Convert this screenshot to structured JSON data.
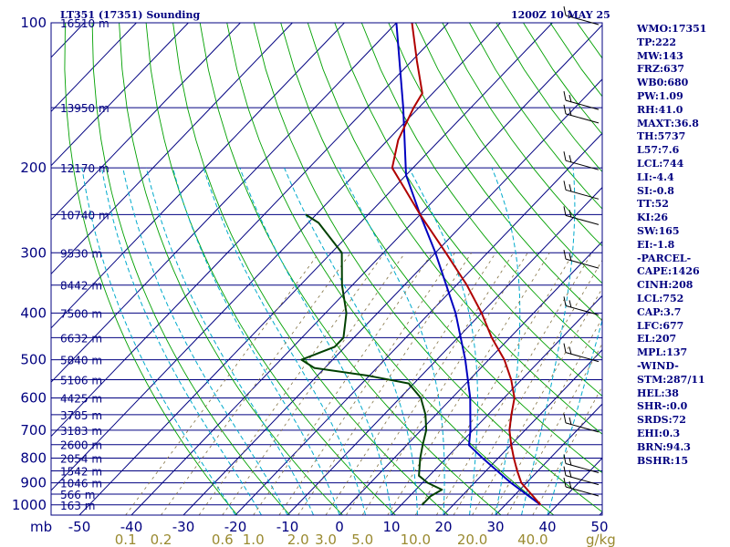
{
  "title_left": "LT351 (17351) Sounding",
  "title_right": "1200Z 10 MAY 25",
  "pressure_axis_label": "mb",
  "kg_label": "g/kg",
  "colors": {
    "isobar": "#000080",
    "isotherm": "#000080",
    "dry_adiabat": "#00a000",
    "moist_adiabat": "#00aacc",
    "mixing_ratio": "#807040",
    "temperature": "#b00000",
    "dewpoint": "#004000",
    "parcel": "#0000c0"
  },
  "stats": [
    "WMO:17351",
    "TP:222",
    "MW:143",
    "FRZ:637",
    "WB0:680",
    "PW:1.09",
    "RH:41.0",
    "MAXT:36.8",
    "TH:5737",
    "L57:7.6",
    "LCL:744",
    "LI:-4.4",
    "SI:-0.8",
    "TT:52",
    "KI:26",
    "SW:165",
    "EI:-1.8",
    "-PARCEL-",
    "CAPE:1426",
    "CINH:208",
    "LCL:752",
    "CAP:3.7",
    "LFC:677",
    "EL:207",
    "MPL:137",
    "-WIND-",
    "STM:287/11",
    "HEL:38",
    "SHR-:0.0",
    "SRDS:72",
    "EHI:0.3",
    "BRN:94.3",
    "BSHR:15"
  ],
  "chart_data": {
    "type": "line",
    "chart_kind": "Skew-T log-P sounding",
    "pressure_ticks_mb": [
      "100",
      "200",
      "300",
      "400",
      "500",
      "600",
      "700",
      "800",
      "900",
      "1000"
    ],
    "heights": [
      {
        "p": 100,
        "label": "16510 m"
      },
      {
        "p": 150,
        "label": "13950 m"
      },
      {
        "p": 200,
        "label": "12170 m"
      },
      {
        "p": 250,
        "label": "10740 m"
      },
      {
        "p": 300,
        "label": "9530 m"
      },
      {
        "p": 350,
        "label": "8442 m"
      },
      {
        "p": 400,
        "label": "7500 m"
      },
      {
        "p": 450,
        "label": "6632 m"
      },
      {
        "p": 500,
        "label": "5840 m"
      },
      {
        "p": 550,
        "label": "5106 m"
      },
      {
        "p": 600,
        "label": "4425 m"
      },
      {
        "p": 650,
        "label": "3785 m"
      },
      {
        "p": 700,
        "label": "3183 m"
      },
      {
        "p": 750,
        "label": "2600 m"
      },
      {
        "p": 800,
        "label": "2054 m"
      },
      {
        "p": 850,
        "label": "1542 m"
      },
      {
        "p": 900,
        "label": "1046 m"
      },
      {
        "p": 950,
        "label": "566 m"
      },
      {
        "p": 1000,
        "label": "163 m"
      }
    ],
    "temp_ticks_c": [
      "-50",
      "-40",
      "-30",
      "-20",
      "-10",
      "0",
      "10",
      "20",
      "30",
      "40",
      "50"
    ],
    "mixing_ratio_ticks_gkg": [
      "0.1",
      "0.2",
      "0.6",
      "1.0",
      "2.0",
      "3.0",
      "5.0",
      "10.0",
      "20.0",
      "40.0"
    ],
    "temperature_profile": [
      {
        "p": 1000,
        "t": 36.8
      },
      {
        "p": 950,
        "t": 33.0
      },
      {
        "p": 900,
        "t": 29.0
      },
      {
        "p": 850,
        "t": 26.0
      },
      {
        "p": 800,
        "t": 23.0
      },
      {
        "p": 750,
        "t": 20.0
      },
      {
        "p": 700,
        "t": 17.0
      },
      {
        "p": 650,
        "t": 14.5
      },
      {
        "p": 600,
        "t": 12.0
      },
      {
        "p": 550,
        "t": 8.0
      },
      {
        "p": 500,
        "t": 3.0
      },
      {
        "p": 450,
        "t": -3.5
      },
      {
        "p": 400,
        "t": -10.0
      },
      {
        "p": 350,
        "t": -18.0
      },
      {
        "p": 300,
        "t": -28.0
      },
      {
        "p": 250,
        "t": -40.0
      },
      {
        "p": 220,
        "t": -48.0
      },
      {
        "p": 200,
        "t": -54.0
      },
      {
        "p": 175,
        "t": -58.0
      },
      {
        "p": 150,
        "t": -61.0
      },
      {
        "p": 140,
        "t": -62.0
      },
      {
        "p": 120,
        "t": -69.0
      },
      {
        "p": 100,
        "t": -77.0
      }
    ],
    "dewpoint_profile": [
      {
        "p": 1000,
        "td": 14.0
      },
      {
        "p": 960,
        "td": 14.0
      },
      {
        "p": 930,
        "td": 15.0
      },
      {
        "p": 900,
        "td": 11.0
      },
      {
        "p": 870,
        "td": 8.0
      },
      {
        "p": 800,
        "td": 5.0
      },
      {
        "p": 750,
        "td": 3.0
      },
      {
        "p": 700,
        "td": 1.0
      },
      {
        "p": 650,
        "td": -2.0
      },
      {
        "p": 600,
        "td": -6.0
      },
      {
        "p": 560,
        "td": -11.0
      },
      {
        "p": 540,
        "td": -20.0
      },
      {
        "p": 520,
        "td": -32.0
      },
      {
        "p": 500,
        "td": -36.0
      },
      {
        "p": 470,
        "td": -32.0
      },
      {
        "p": 450,
        "td": -32.0
      },
      {
        "p": 400,
        "td": -36.0
      },
      {
        "p": 350,
        "td": -42.0
      },
      {
        "p": 300,
        "td": -48.0
      },
      {
        "p": 260,
        "td": -58.0
      },
      {
        "p": 250,
        "td": -62.0
      }
    ],
    "parcel_profile": [
      {
        "p": 1000,
        "t": 36.8
      },
      {
        "p": 900,
        "t": 27.0
      },
      {
        "p": 800,
        "t": 17.0
      },
      {
        "p": 752,
        "t": 12.0
      },
      {
        "p": 700,
        "t": 9.5
      },
      {
        "p": 600,
        "t": 3.5
      },
      {
        "p": 500,
        "t": -4.5
      },
      {
        "p": 400,
        "t": -15.0
      },
      {
        "p": 300,
        "t": -30.0
      },
      {
        "p": 250,
        "t": -40.0
      },
      {
        "p": 207,
        "t": -50.0
      },
      {
        "p": 150,
        "t": -63.0
      },
      {
        "p": 100,
        "t": -80.0
      }
    ],
    "wind_barbs": [
      {
        "p": 100
      },
      {
        "p": 150
      },
      {
        "p": 160
      },
      {
        "p": 200
      },
      {
        "p": 230
      },
      {
        "p": 260
      },
      {
        "p": 320
      },
      {
        "p": 400
      },
      {
        "p": 500
      },
      {
        "p": 700
      },
      {
        "p": 850
      },
      {
        "p": 900
      },
      {
        "p": 950
      }
    ],
    "grid": true
  }
}
